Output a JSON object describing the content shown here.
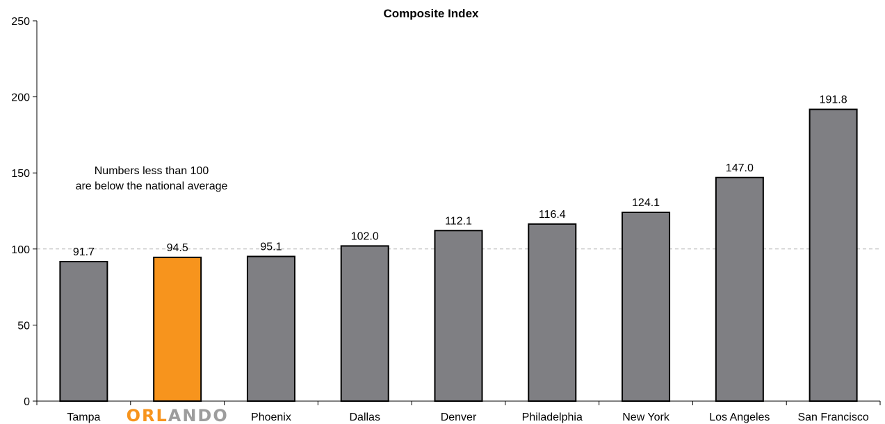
{
  "chart_data": {
    "type": "bar",
    "title": "Composite Index",
    "xlabel": "",
    "ylabel": "",
    "ylim": [
      0,
      250
    ],
    "yticks": [
      0,
      50,
      100,
      150,
      200,
      250
    ],
    "reference_line": 100,
    "grid": false,
    "categories": [
      "Tampa",
      "ORLANDO",
      "Phoenix",
      "Dallas",
      "Denver",
      "Philadelphia",
      "New York",
      "Los Angeles",
      "San Francisco"
    ],
    "values": [
      91.7,
      94.5,
      95.1,
      102.0,
      112.1,
      116.4,
      124.1,
      147.0,
      191.8
    ],
    "value_labels": [
      "91.7",
      "94.5",
      "95.1",
      "102.0",
      "112.1",
      "116.4",
      "124.1",
      "147.0",
      "191.8"
    ],
    "highlight_index": 1,
    "colors": {
      "bar": "#7f7f83",
      "highlight": "#f7941d",
      "bar_stroke": "#000000",
      "reference_line": "#b3b3b3",
      "logo_gray": "#9d9d9d",
      "logo_orange": "#f7941d"
    },
    "annotation": {
      "line1": "Numbers less than 100",
      "line2": "are below the national average"
    }
  }
}
